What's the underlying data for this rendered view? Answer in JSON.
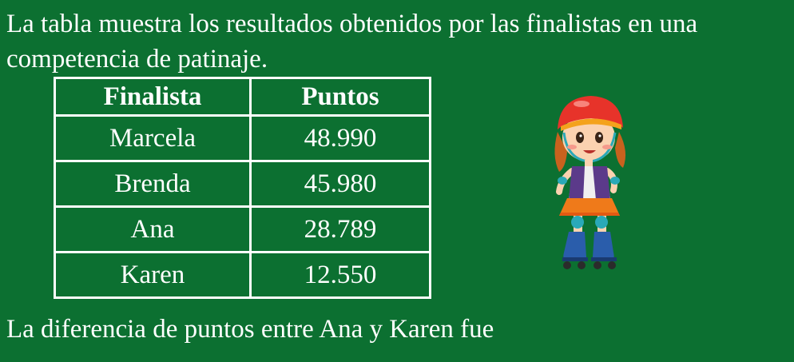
{
  "intro_text": "La tabla muestra los resultados obtenidos por las finalistas en una competencia de patinaje.",
  "table": {
    "headers": [
      "Finalista",
      "Puntos"
    ],
    "rows": [
      {
        "name": "Marcela",
        "points": "48.990"
      },
      {
        "name": "Brenda",
        "points": "45.980"
      },
      {
        "name": "Ana",
        "points": "28.789"
      },
      {
        "name": "Karen",
        "points": "12.550"
      }
    ]
  },
  "question_text": "La diferencia de puntos entre Ana y Karen fue",
  "colors": {
    "background": "#0c7031",
    "text": "#ffffff"
  },
  "illustration": "girl-roller-skater-icon"
}
